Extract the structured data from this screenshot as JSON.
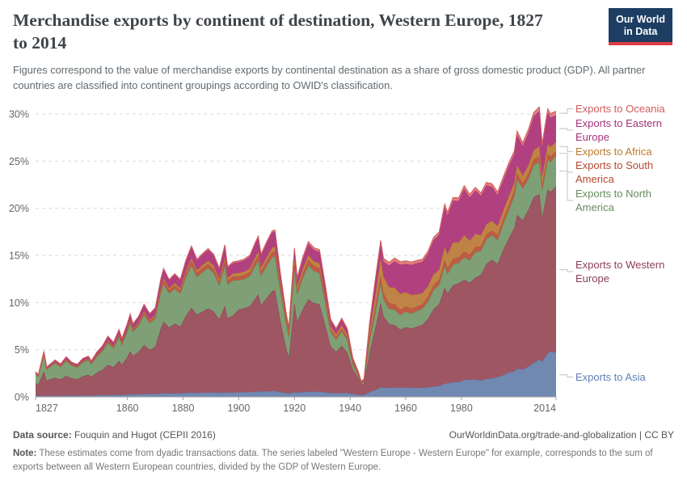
{
  "header": {
    "title_line1": "Merchandise exports by continent of destination, Western Europe, 1827",
    "title_line2": "to 2014",
    "subtitle": "Figures correspond to the value of merchandise exports by continental destination as a share of gross domestic product (GDP). All partner countries are classified into continent groupings according to OWID's classification.",
    "logo": {
      "line1": "Our World",
      "line2": "in Data"
    }
  },
  "chart_data": {
    "type": "area",
    "stacked": true,
    "title": "Merchandise exports by continent of destination, Western Europe, 1827 to 2014",
    "xlabel": "",
    "ylabel": "share of GDP",
    "unit": "%",
    "grid": true,
    "legend_position": "right",
    "xlim": [
      1827,
      2014
    ],
    "ylim": [
      0,
      30
    ],
    "x_ticks": [
      1827,
      1860,
      1880,
      1900,
      1920,
      1940,
      1960,
      1980,
      2014
    ],
    "y_ticks": [
      0,
      5,
      10,
      15,
      20,
      25,
      30
    ],
    "x": [
      1827,
      1828,
      1830,
      1831,
      1832,
      1834,
      1836,
      1838,
      1840,
      1842,
      1844,
      1846,
      1847,
      1849,
      1851,
      1853,
      1855,
      1857,
      1858,
      1860,
      1861,
      1862,
      1864,
      1866,
      1868,
      1870,
      1872,
      1873,
      1875,
      1877,
      1879,
      1881,
      1883,
      1885,
      1887,
      1889,
      1891,
      1893,
      1895,
      1896,
      1898,
      1900,
      1902,
      1904,
      1906,
      1907,
      1908,
      1910,
      1912,
      1913,
      1915,
      1917,
      1918,
      1920,
      1921,
      1923,
      1925,
      1927,
      1929,
      1931,
      1933,
      1935,
      1937,
      1939,
      1941,
      1943,
      1944,
      1945,
      1947,
      1949,
      1951,
      1952,
      1954,
      1956,
      1958,
      1960,
      1962,
      1964,
      1966,
      1968,
      1970,
      1972,
      1974,
      1975,
      1977,
      1979,
      1981,
      1983,
      1985,
      1987,
      1989,
      1991,
      1993,
      1995,
      1997,
      1999,
      2000,
      2002,
      2004,
      2006,
      2008,
      2009,
      2011,
      2012,
      2014
    ],
    "series": [
      {
        "key": "asia",
        "label": "Exports to Asia",
        "color": "#5f7fb5",
        "fill": "#7189b0",
        "values": [
          0.1,
          0.1,
          0.12,
          0.1,
          0.1,
          0.12,
          0.12,
          0.13,
          0.12,
          0.12,
          0.14,
          0.15,
          0.14,
          0.16,
          0.18,
          0.2,
          0.2,
          0.22,
          0.2,
          0.25,
          0.26,
          0.25,
          0.28,
          0.3,
          0.3,
          0.32,
          0.36,
          0.38,
          0.36,
          0.38,
          0.36,
          0.4,
          0.45,
          0.42,
          0.44,
          0.46,
          0.45,
          0.42,
          0.48,
          0.44,
          0.46,
          0.48,
          0.5,
          0.52,
          0.56,
          0.58,
          0.54,
          0.58,
          0.62,
          0.62,
          0.5,
          0.4,
          0.35,
          0.5,
          0.45,
          0.5,
          0.55,
          0.55,
          0.55,
          0.48,
          0.4,
          0.38,
          0.42,
          0.4,
          0.3,
          0.22,
          0.18,
          0.2,
          0.5,
          0.7,
          1.0,
          0.95,
          0.95,
          1.0,
          0.95,
          1.0,
          0.95,
          0.95,
          0.95,
          1.0,
          1.1,
          1.15,
          1.4,
          1.45,
          1.55,
          1.55,
          1.8,
          1.8,
          1.85,
          1.75,
          1.9,
          1.95,
          2.1,
          2.3,
          2.6,
          2.7,
          3.0,
          2.9,
          3.2,
          3.6,
          4.0,
          3.7,
          4.6,
          4.8,
          4.7
        ]
      },
      {
        "key": "western_europe",
        "label": "Exports to Western Europe",
        "color": "#8d3e53",
        "fill": "#9e5663",
        "values": [
          1.35,
          1.2,
          2.6,
          1.6,
          1.75,
          1.9,
          1.75,
          2.1,
          1.85,
          1.75,
          2.05,
          2.2,
          2.0,
          2.4,
          2.7,
          3.2,
          2.95,
          3.6,
          3.2,
          4.0,
          4.6,
          4.1,
          4.5,
          5.2,
          4.7,
          5.0,
          6.9,
          7.6,
          7.0,
          7.4,
          7.1,
          8.2,
          9.0,
          8.3,
          8.6,
          8.9,
          8.6,
          7.8,
          9.2,
          7.9,
          8.2,
          8.8,
          8.9,
          9.1,
          9.9,
          10.3,
          9.2,
          9.9,
          10.6,
          10.7,
          7.5,
          4.8,
          3.8,
          9.5,
          7.5,
          8.8,
          9.8,
          9.4,
          9.3,
          7.2,
          5.0,
          4.4,
          5.0,
          4.3,
          2.6,
          1.8,
          1.1,
          1.2,
          4.2,
          6.5,
          9.0,
          7.6,
          6.8,
          6.6,
          6.2,
          6.4,
          6.3,
          6.5,
          6.7,
          7.3,
          8.2,
          8.7,
          10.2,
          9.5,
          10.3,
          10.5,
          10.6,
          10.3,
          10.8,
          11.2,
          12.2,
          12.6,
          12.0,
          13.3,
          14.2,
          15.2,
          16.3,
          15.8,
          16.6,
          17.6,
          17.5,
          15.3,
          17.4,
          16.9,
          17.6
        ]
      },
      {
        "key": "north_america",
        "label": "Exports to North America",
        "color": "#668d5c",
        "fill": "#7fa076",
        "values": [
          1.0,
          0.85,
          1.75,
          1.2,
          1.3,
          1.55,
          1.3,
          1.6,
          1.35,
          1.25,
          1.5,
          1.55,
          1.3,
          1.7,
          1.95,
          2.35,
          2.0,
          2.55,
          2.1,
          2.7,
          3.0,
          2.55,
          2.8,
          3.2,
          2.8,
          3.0,
          3.8,
          4.0,
          3.6,
          3.7,
          3.5,
          4.1,
          4.5,
          4.0,
          4.2,
          4.3,
          4.1,
          3.6,
          4.3,
          3.6,
          3.7,
          3.1,
          3.1,
          3.2,
          3.5,
          3.6,
          3.1,
          3.4,
          3.6,
          3.6,
          3.2,
          2.6,
          2.2,
          3.6,
          2.9,
          3.3,
          3.6,
          3.4,
          3.3,
          2.4,
          1.5,
          1.3,
          1.55,
          1.35,
          0.5,
          0.2,
          0.12,
          0.2,
          1.3,
          1.6,
          2.1,
          1.8,
          1.6,
          1.65,
          1.55,
          1.65,
          1.6,
          1.65,
          1.7,
          1.85,
          2.05,
          2.05,
          2.3,
          2.1,
          2.2,
          2.15,
          2.4,
          2.4,
          2.7,
          2.55,
          2.65,
          2.6,
          2.55,
          2.75,
          3.0,
          3.4,
          3.8,
          3.4,
          3.3,
          3.4,
          3.4,
          2.9,
          3.2,
          3.2,
          3.3
        ]
      },
      {
        "key": "south_america",
        "label": "Exports to South America",
        "color": "#b5492f",
        "fill": "#c05b45",
        "values": [
          0.05,
          0.05,
          0.08,
          0.06,
          0.06,
          0.08,
          0.07,
          0.09,
          0.08,
          0.08,
          0.09,
          0.1,
          0.09,
          0.11,
          0.13,
          0.15,
          0.14,
          0.17,
          0.15,
          0.18,
          0.2,
          0.18,
          0.2,
          0.24,
          0.22,
          0.25,
          0.32,
          0.35,
          0.32,
          0.34,
          0.33,
          0.4,
          0.45,
          0.4,
          0.42,
          0.44,
          0.42,
          0.38,
          0.45,
          0.39,
          0.4,
          0.41,
          0.42,
          0.43,
          0.48,
          0.5,
          0.45,
          0.48,
          0.52,
          0.52,
          0.45,
          0.4,
          0.35,
          0.55,
          0.45,
          0.5,
          0.55,
          0.52,
          0.52,
          0.4,
          0.28,
          0.25,
          0.3,
          0.26,
          0.15,
          0.08,
          0.05,
          0.07,
          0.4,
          0.55,
          0.75,
          0.65,
          0.58,
          0.58,
          0.52,
          0.55,
          0.5,
          0.48,
          0.46,
          0.48,
          0.5,
          0.5,
          0.6,
          0.58,
          0.6,
          0.58,
          0.6,
          0.55,
          0.55,
          0.48,
          0.48,
          0.48,
          0.5,
          0.5,
          0.55,
          0.55,
          0.58,
          0.52,
          0.52,
          0.55,
          0.6,
          0.5,
          0.58,
          0.56,
          0.45
        ]
      },
      {
        "key": "africa",
        "label": "Exports to Africa",
        "color": "#bb7a2d",
        "fill": "#bf8445",
        "values": [
          0.03,
          0.03,
          0.05,
          0.04,
          0.04,
          0.05,
          0.05,
          0.06,
          0.05,
          0.05,
          0.06,
          0.06,
          0.06,
          0.07,
          0.08,
          0.1,
          0.09,
          0.11,
          0.1,
          0.12,
          0.13,
          0.12,
          0.14,
          0.16,
          0.15,
          0.16,
          0.22,
          0.24,
          0.22,
          0.24,
          0.23,
          0.28,
          0.32,
          0.3,
          0.32,
          0.34,
          0.33,
          0.3,
          0.36,
          0.31,
          0.33,
          0.35,
          0.36,
          0.38,
          0.42,
          0.44,
          0.4,
          0.44,
          0.48,
          0.48,
          0.4,
          0.35,
          0.32,
          0.5,
          0.42,
          0.48,
          0.52,
          0.5,
          0.5,
          0.42,
          0.32,
          0.3,
          0.34,
          0.3,
          0.2,
          0.12,
          0.08,
          0.1,
          0.7,
          1.2,
          1.9,
          1.75,
          1.7,
          1.75,
          1.7,
          1.5,
          1.45,
          1.3,
          1.2,
          1.15,
          1.15,
          1.1,
          1.4,
          1.5,
          1.75,
          1.6,
          1.75,
          1.5,
          1.4,
          1.15,
          1.1,
          1.05,
          0.95,
          0.9,
          0.9,
          0.85,
          0.9,
          0.85,
          0.9,
          1.0,
          1.1,
          0.95,
          1.05,
          1.05,
          1.0
        ]
      },
      {
        "key": "eastern_europe",
        "label": "Exports to Eastern Europe",
        "color": "#a8327a",
        "fill": "#b04080",
        "values": [
          0.12,
          0.1,
          0.22,
          0.15,
          0.15,
          0.2,
          0.18,
          0.25,
          0.2,
          0.18,
          0.22,
          0.24,
          0.2,
          0.28,
          0.33,
          0.4,
          0.36,
          0.45,
          0.4,
          0.5,
          0.55,
          0.5,
          0.55,
          0.65,
          0.6,
          0.65,
          0.85,
          0.95,
          0.85,
          0.9,
          0.85,
          1.0,
          1.15,
          1.05,
          1.1,
          1.15,
          1.1,
          1.0,
          1.2,
          1.05,
          1.1,
          1.15,
          1.2,
          1.25,
          1.4,
          1.45,
          1.3,
          1.45,
          1.6,
          1.6,
          0.8,
          0.3,
          0.22,
          0.9,
          0.75,
          1.0,
          1.2,
          1.2,
          1.2,
          0.95,
          0.6,
          0.5,
          0.6,
          0.5,
          0.3,
          0.2,
          0.12,
          0.1,
          0.6,
          1.5,
          1.4,
          1.6,
          2.3,
          2.8,
          3.1,
          3.0,
          3.2,
          3.3,
          3.3,
          3.4,
          3.6,
          3.7,
          4.2,
          4.1,
          4.4,
          4.4,
          4.9,
          4.6,
          4.6,
          4.2,
          4.1,
          3.6,
          3.3,
          3.2,
          3.2,
          3.0,
          3.2,
          3.1,
          3.4,
          3.6,
          3.7,
          3.1,
          3.3,
          3.1,
          2.8
        ]
      },
      {
        "key": "oceania",
        "label": "Exports to Oceania",
        "color": "#cf5b5b",
        "fill": "#e27d7d",
        "values": [
          0.01,
          0.01,
          0.02,
          0.01,
          0.01,
          0.02,
          0.02,
          0.02,
          0.02,
          0.02,
          0.02,
          0.02,
          0.02,
          0.03,
          0.03,
          0.04,
          0.04,
          0.05,
          0.04,
          0.05,
          0.06,
          0.05,
          0.06,
          0.07,
          0.06,
          0.07,
          0.09,
          0.1,
          0.09,
          0.1,
          0.09,
          0.12,
          0.13,
          0.12,
          0.13,
          0.14,
          0.13,
          0.12,
          0.14,
          0.12,
          0.13,
          0.14,
          0.15,
          0.15,
          0.17,
          0.18,
          0.16,
          0.17,
          0.19,
          0.19,
          0.15,
          0.15,
          0.14,
          0.25,
          0.2,
          0.22,
          0.25,
          0.24,
          0.24,
          0.2,
          0.15,
          0.13,
          0.15,
          0.13,
          0.06,
          0.03,
          0.02,
          0.03,
          0.15,
          0.25,
          0.45,
          0.35,
          0.33,
          0.35,
          0.32,
          0.33,
          0.3,
          0.3,
          0.28,
          0.28,
          0.3,
          0.3,
          0.35,
          0.33,
          0.35,
          0.33,
          0.35,
          0.33,
          0.33,
          0.3,
          0.32,
          0.32,
          0.33,
          0.35,
          0.36,
          0.36,
          0.4,
          0.38,
          0.4,
          0.42,
          0.45,
          0.38,
          0.42,
          0.42,
          0.45
        ]
      }
    ]
  },
  "footer": {
    "source_label": "Data source:",
    "source_text": " Fouquin and Hugot (CEPII 2016)",
    "link_text": "OurWorldinData.org/trade-and-globalization | CC BY",
    "note_label": "Note:",
    "note_text": " These estimates come from dyadic transactions data. The series labeled \"Western Europe - Western Europe\" for example, corresponds to the sum of exports between all Western European countries, divided by the GDP of Western Europe."
  }
}
